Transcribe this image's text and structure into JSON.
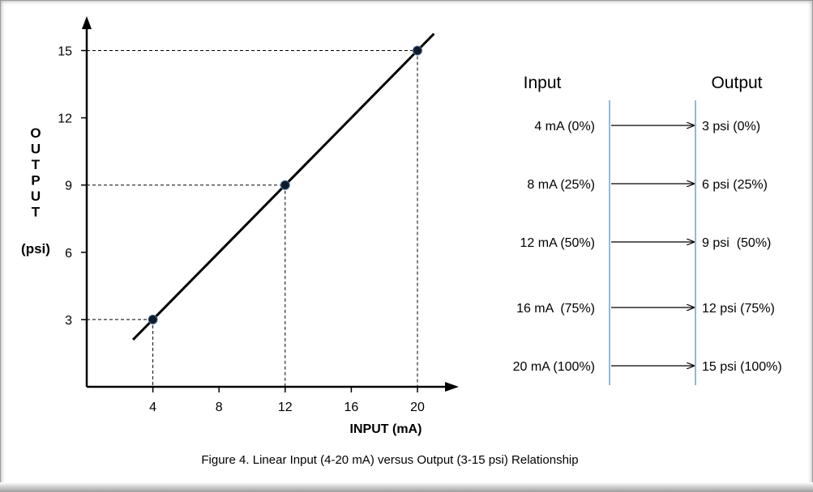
{
  "colors": {
    "line": "#000000",
    "point": "#0f1b2d",
    "divider": "#7ba7cc",
    "text": "#000000"
  },
  "chart_data": {
    "type": "line",
    "xlabel": "INPUT (mA)",
    "ylabel_letters": [
      "O",
      "U",
      "T",
      "P",
      "U",
      "T"
    ],
    "ylabel_unit": "(psi)",
    "x_ticks": [
      "4",
      "8",
      "12",
      "16",
      "20"
    ],
    "y_ticks": [
      "3",
      "6",
      "9",
      "12",
      "15"
    ],
    "xlim": [
      0,
      22.5
    ],
    "ylim": [
      0,
      17.5
    ],
    "line_x": [
      2.8,
      21
    ],
    "points": [
      {
        "x": 4,
        "y": 3
      },
      {
        "x": 12,
        "y": 9
      },
      {
        "x": 20,
        "y": 15
      }
    ],
    "guides": "dashed",
    "grid": false
  },
  "table": {
    "input_header": "Input",
    "output_header": "Output",
    "rows": [
      {
        "input": "4 mA (0%)",
        "output": "3 psi (0%)"
      },
      {
        "input": "8 mA (25%)",
        "output": "6 psi (25%)"
      },
      {
        "input": "12 mA (50%)",
        "output": "9 psi  (50%)"
      },
      {
        "input": "16 mA  (75%)",
        "output": "12 psi (75%)"
      },
      {
        "input": "20 mA (100%)",
        "output": "15 psi (100%)"
      }
    ]
  },
  "caption": "Figure 4.  Linear Input (4-20 mA) versus Output (3-15 psi) Relationship"
}
